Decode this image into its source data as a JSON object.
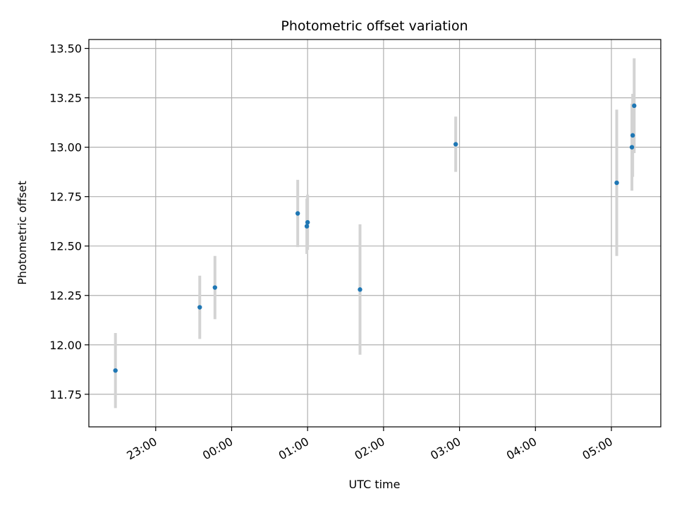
{
  "chart_data": {
    "type": "scatter",
    "title": "Photometric offset variation",
    "xlabel": "UTC time",
    "ylabel": "Photometric offset",
    "x_ticks": [
      "23:00",
      "00:00",
      "01:00",
      "02:00",
      "03:00",
      "04:00",
      "05:00"
    ],
    "x_tick_hours": [
      0,
      1,
      2,
      3,
      4,
      5,
      6
    ],
    "xlim_hours": [
      -0.88,
      6.65
    ],
    "y_ticks": [
      "11.75",
      "12.00",
      "12.25",
      "12.50",
      "12.75",
      "13.00",
      "13.25",
      "13.50"
    ],
    "y_tick_values": [
      11.75,
      12.0,
      12.25,
      12.5,
      12.75,
      13.0,
      13.25,
      13.5
    ],
    "ylim": [
      11.585,
      13.545
    ],
    "grid": true,
    "colors": {
      "point": "#1f77b4",
      "errorbar": "#d3d3d3",
      "grid": "#b0b0b0",
      "axes": "#000000"
    },
    "points": [
      {
        "t": -0.53,
        "y": 11.87,
        "err": 0.19
      },
      {
        "t": 0.58,
        "y": 12.19,
        "err": 0.16
      },
      {
        "t": 0.78,
        "y": 12.29,
        "err": 0.16
      },
      {
        "t": 1.87,
        "y": 12.665,
        "err": 0.17
      },
      {
        "t": 1.99,
        "y": 12.6,
        "err": 0.14
      },
      {
        "t": 2.0,
        "y": 12.62,
        "err": 0.14
      },
      {
        "t": 2.69,
        "y": 12.28,
        "err": 0.33
      },
      {
        "t": 3.95,
        "y": 13.015,
        "err": 0.14
      },
      {
        "t": 6.07,
        "y": 12.82,
        "err": 0.37
      },
      {
        "t": 6.27,
        "y": 13.0,
        "err": 0.22
      },
      {
        "t": 6.28,
        "y": 13.06,
        "err": 0.21
      },
      {
        "t": 6.3,
        "y": 13.21,
        "err": 0.24
      }
    ]
  }
}
